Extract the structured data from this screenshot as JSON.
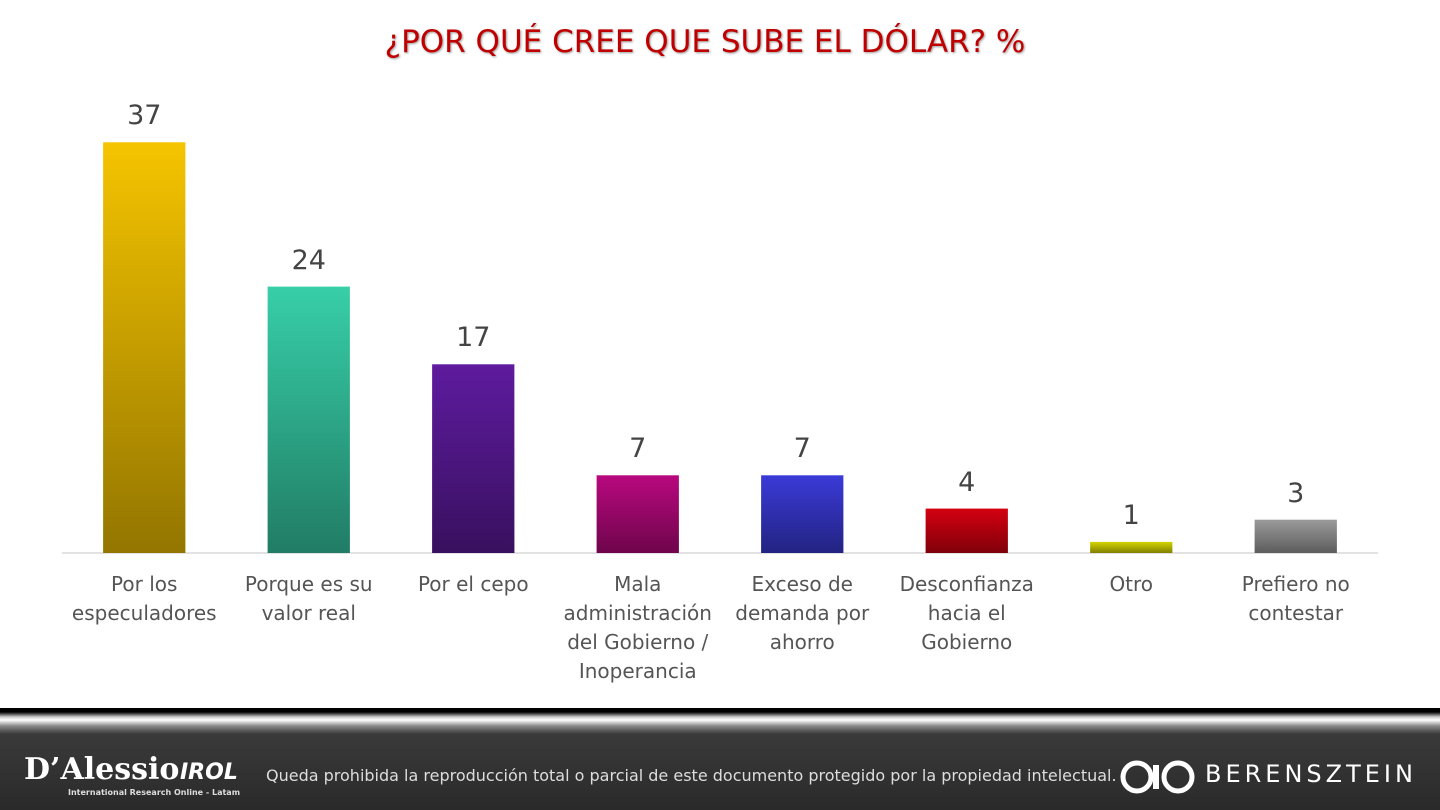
{
  "chart_data": {
    "type": "bar",
    "title": "¿POR QUÉ CREE QUE SUBE EL DÓLAR? %",
    "categories": [
      "Por los especuladores",
      "Porque es su valor real",
      "Por el cepo",
      "Mala administración del Gobierno / Inoperancia",
      "Exceso de demanda por ahorro",
      "Desconfianza hacia el Gobierno",
      "Otro",
      "Prefiero no contestar"
    ],
    "values": [
      37,
      24,
      17,
      7,
      7,
      4,
      1,
      3
    ],
    "colors": [
      "#f5c400",
      "#37cfa8",
      "#5e1b9e",
      "#b8087e",
      "#3a3ad8",
      "#d40010",
      "#d4d400",
      "#9a9a9a"
    ],
    "ylim": [
      0,
      40
    ]
  },
  "footer": {
    "brand": "D’Alessio",
    "brand_tag": "IROL",
    "brand_sub": "International Research Online - Latam",
    "notice": "Queda prohibida la reproducción total o parcial de este documento protegido por la propiedad intelectual.",
    "partner": "BERENSZTEIN"
  }
}
